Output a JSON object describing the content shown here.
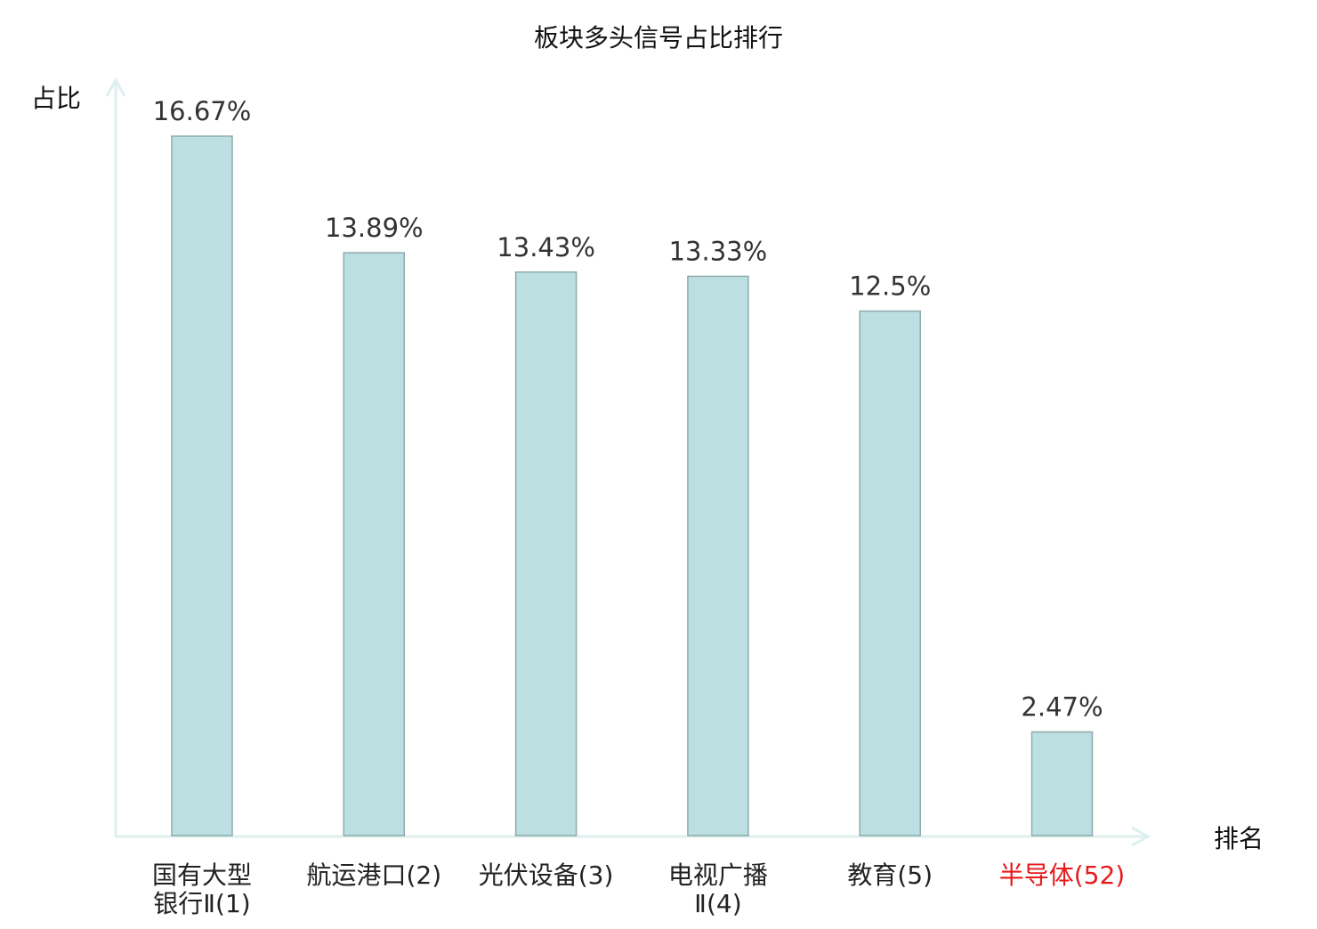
{
  "chart_data": {
    "type": "bar",
    "title": "板块多头信号占比排行",
    "xlabel": "排名",
    "ylabel": "占比",
    "categories": [
      [
        "国有大型",
        "银行Ⅱ(1)"
      ],
      [
        "航运港口(2)"
      ],
      [
        "光伏设备(3)"
      ],
      [
        "电视广播",
        "Ⅱ(4)"
      ],
      [
        "教育(5)"
      ],
      [
        "半导体(52)"
      ]
    ],
    "values": [
      16.67,
      13.89,
      13.43,
      13.33,
      12.5,
      2.47
    ],
    "value_labels": [
      "16.67%",
      "13.89%",
      "13.43%",
      "13.33%",
      "12.5%",
      "2.47%"
    ],
    "highlight_index": 5,
    "ylim": [
      0,
      16.67
    ],
    "grid": false,
    "colors": {
      "bar_fill": "#bce0e2",
      "bar_stroke": "#8fa9ab",
      "axis": "#dcf0ee",
      "label": "#222222",
      "value_label": "#333333",
      "highlight": "#e8191b"
    }
  }
}
